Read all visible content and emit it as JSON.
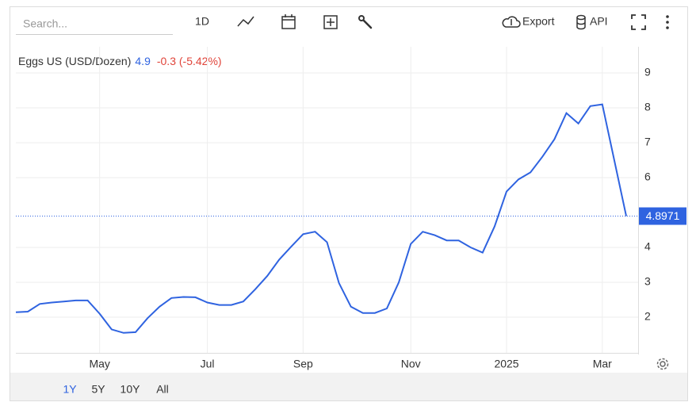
{
  "toolbar": {
    "search_placeholder": "Search...",
    "interval": "1D",
    "export": "Export",
    "api": "API"
  },
  "chart_data": {
    "type": "line",
    "series": [
      {
        "name": "Eggs US (USD/Dozen)",
        "color": "#2f63e0",
        "values": [
          2.14,
          2.16,
          2.38,
          2.42,
          2.45,
          2.48,
          2.48,
          2.1,
          1.65,
          1.55,
          1.57,
          1.97,
          2.3,
          2.55,
          2.58,
          2.57,
          2.42,
          2.35,
          2.35,
          2.45,
          2.8,
          3.18,
          3.65,
          4.02,
          4.38,
          4.45,
          4.15,
          2.98,
          2.3,
          2.12,
          2.12,
          2.25,
          3.0,
          4.1,
          4.45,
          4.35,
          4.2,
          4.2,
          4.0,
          3.85,
          4.6,
          5.6,
          5.95,
          6.15,
          6.6,
          7.1,
          7.85,
          7.55,
          8.05,
          8.1,
          6.5,
          4.8971
        ]
      }
    ],
    "categories": [
      null,
      null,
      null,
      null,
      null,
      null,
      null,
      "May",
      null,
      null,
      null,
      null,
      null,
      null,
      null,
      null,
      "Jul",
      null,
      null,
      null,
      null,
      null,
      null,
      null,
      "Sep",
      null,
      null,
      null,
      null,
      null,
      null,
      null,
      null,
      "Nov",
      null,
      null,
      null,
      null,
      null,
      null,
      null,
      "2025",
      null,
      null,
      null,
      null,
      null,
      null,
      null,
      "Mar",
      null,
      null
    ],
    "last": 4.9,
    "change": "-0.3 (-5.42%)",
    "last_value": 4.8971,
    "ylim": [
      1,
      9.75
    ],
    "yticks": [
      2,
      3,
      4,
      6,
      7,
      8,
      9
    ],
    "grid": true
  },
  "range_buttons": [
    "1Y",
    "5Y",
    "10Y",
    "All"
  ]
}
